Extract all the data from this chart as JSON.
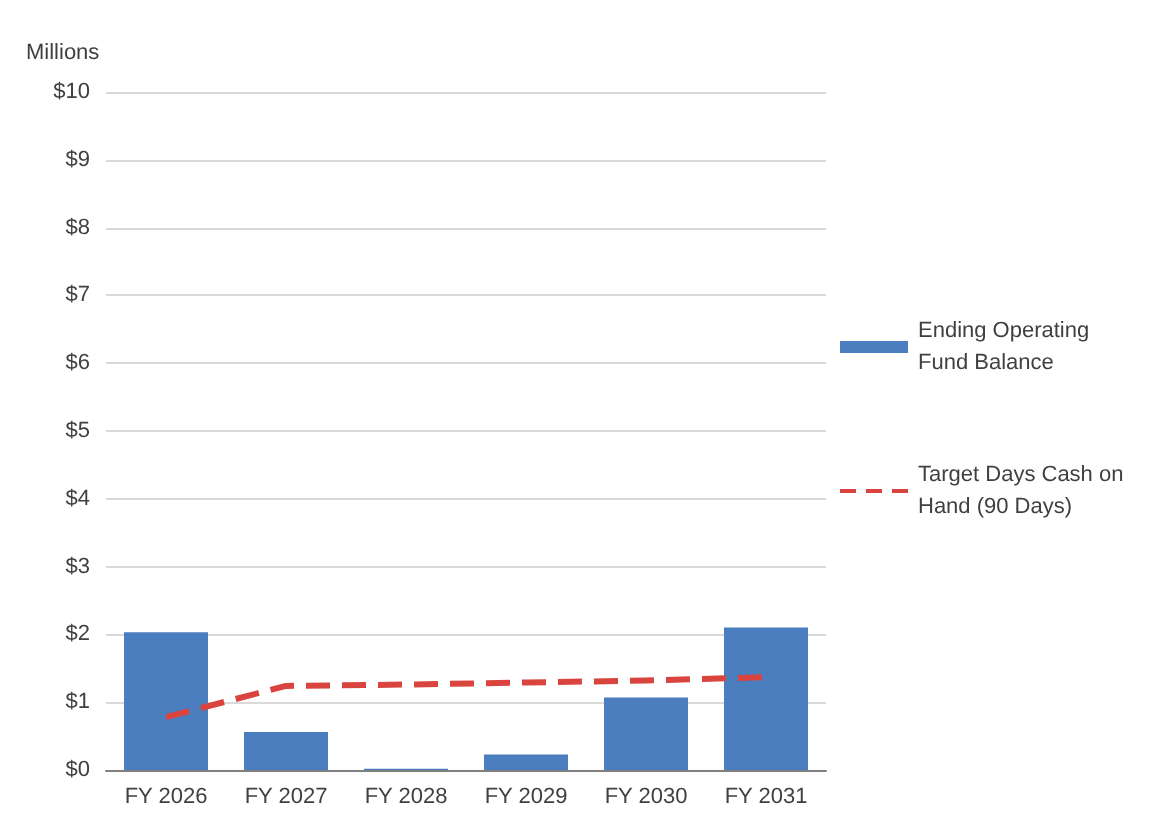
{
  "chart_data": {
    "type": "bar",
    "ylabel": "Millions",
    "categories": [
      "FY 2026",
      "FY 2027",
      "FY 2028",
      "FY 2029",
      "FY 2030",
      "FY 2031"
    ],
    "series": [
      {
        "name": "Ending Operating Fund Balance",
        "color": "#4a7ebf",
        "values": [
          2.03,
          0.56,
          0.02,
          0.23,
          1.07,
          2.1
        ]
      },
      {
        "name": "Target Days Cash on Hand (90 Days)",
        "type": "line",
        "color": "#d9443f",
        "line_style": "dashed",
        "marker": "none",
        "values": [
          0.78,
          1.24,
          1.26,
          1.29,
          1.32,
          1.37
        ]
      }
    ],
    "ylim": [
      0,
      10
    ],
    "yticks": [
      {
        "value": 0,
        "label": "$0"
      },
      {
        "value": 1,
        "label": "$1"
      },
      {
        "value": 2,
        "label": "$2"
      },
      {
        "value": 3,
        "label": "$3"
      },
      {
        "value": 4,
        "label": "$4"
      },
      {
        "value": 5,
        "label": "$5"
      },
      {
        "value": 6,
        "label": "$6"
      },
      {
        "value": 7,
        "label": "$7"
      },
      {
        "value": 8,
        "label": "$8"
      },
      {
        "value": 9,
        "label": "$9"
      },
      {
        "value": 10,
        "label": "$10"
      }
    ],
    "grid": "y",
    "legend": "right"
  }
}
